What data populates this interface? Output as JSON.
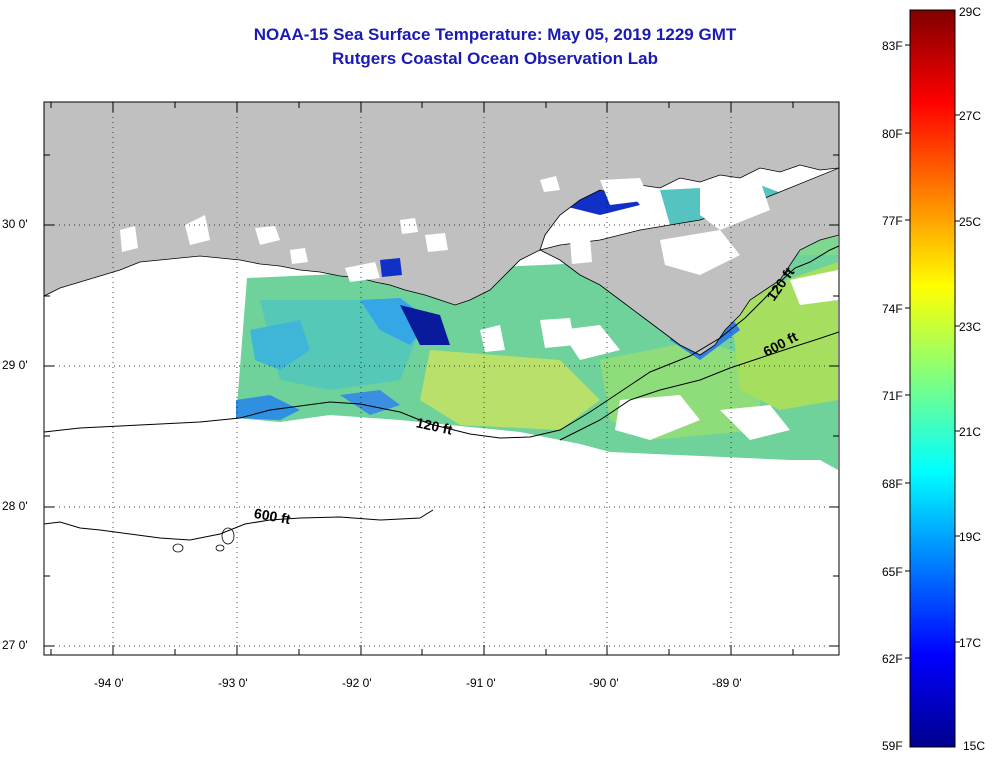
{
  "title": {
    "line1": "NOAA-15 Sea Surface Temperature:  May 05, 2019 1229 GMT",
    "line2": "Rutgers Coastal Ocean Observation Lab"
  },
  "map": {
    "lat_labels": [
      "30 0'",
      "29 0'",
      "28 0'",
      "27 0'"
    ],
    "lon_labels": [
      "-94 0'",
      "-93 0'",
      "-92 0'",
      "-91 0'",
      "-90 0'",
      "-89 0'"
    ],
    "contour_labels": {
      "c120_west": "120 ft",
      "c120_east": "120 ft",
      "c600_west": "600 ft",
      "c600_east": "600 ft"
    },
    "colors": {
      "land": "#c0c0c0",
      "ocean_no_data": "#ffffff",
      "coast": "#000000",
      "grid": "#000000"
    }
  },
  "colorbar": {
    "fahrenheit_labels": [
      "83F",
      "80F",
      "77F",
      "74F",
      "71F",
      "68F",
      "65F",
      "62F",
      "59F"
    ],
    "celsius_labels": [
      "29C",
      "27C",
      "25C",
      "23C",
      "21C",
      "19C",
      "17C",
      "15C"
    ],
    "colormap": "jet",
    "range_c": [
      15,
      29
    ]
  }
}
